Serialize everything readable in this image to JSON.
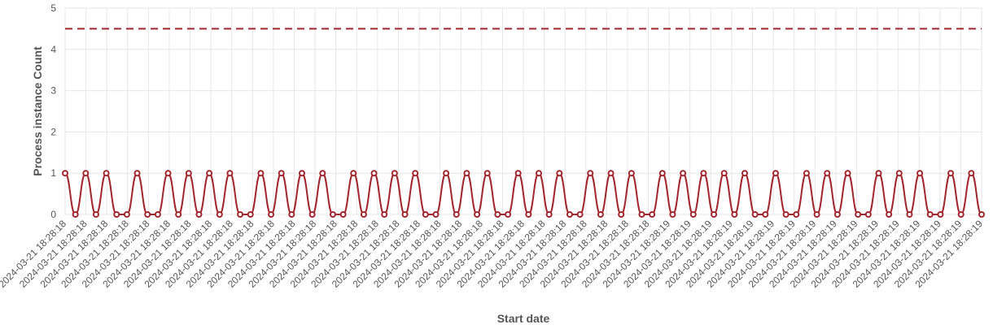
{
  "chart_data": {
    "type": "line",
    "xlabel": "Start date",
    "ylabel": "Process instance Count",
    "ylim": [
      0,
      5
    ],
    "yticks": [
      "0",
      "1",
      "2",
      "3",
      "4",
      "5"
    ],
    "grid": true,
    "x_tick_labels": [
      "2024-03-21 18:28:18",
      "2024-03-21 18:28:18",
      "2024-03-21 18:28:18",
      "2024-03-21 18:28:18",
      "2024-03-21 18:28:18",
      "2024-03-21 18:28:18",
      "2024-03-21 18:28:18",
      "2024-03-21 18:28:18",
      "2024-03-21 18:28:18",
      "2024-03-21 18:28:18",
      "2024-03-21 18:28:18",
      "2024-03-21 18:28:18",
      "2024-03-21 18:28:18",
      "2024-03-21 18:28:18",
      "2024-03-21 18:28:18",
      "2024-03-21 18:28:18",
      "2024-03-21 18:28:18",
      "2024-03-21 18:28:18",
      "2024-03-21 18:28:18",
      "2024-03-21 18:28:18",
      "2024-03-21 18:28:18",
      "2024-03-21 18:28:18",
      "2024-03-21 18:28:18",
      "2024-03-21 18:28:18",
      "2024-03-21 18:28:18",
      "2024-03-21 18:28:18",
      "2024-03-21 18:28:18",
      "2024-03-21 18:28:18",
      "2024-03-21 18:28:18",
      "2024-03-21 18:28:19",
      "2024-03-21 18:28:19",
      "2024-03-21 18:28:19",
      "2024-03-21 18:28:19",
      "2024-03-21 18:28:19",
      "2024-03-21 18:28:19",
      "2024-03-21 18:28:19",
      "2024-03-21 18:28:19",
      "2024-03-21 18:28:19",
      "2024-03-21 18:28:19",
      "2024-03-21 18:28:19",
      "2024-03-21 18:28:19",
      "2024-03-21 18:28:19",
      "2024-03-21 18:28:19",
      "2024-03-21 18:28:19",
      "2024-03-21 18:28:19"
    ],
    "series": [
      {
        "values": [
          1,
          0,
          1,
          0,
          1,
          0,
          0,
          1,
          0,
          0,
          1,
          0,
          1,
          0,
          1,
          0,
          1,
          0,
          0,
          1,
          0,
          1,
          0,
          1,
          0,
          1,
          0,
          0,
          1,
          0,
          1,
          0,
          1,
          0,
          1,
          0,
          0,
          1,
          0,
          1,
          0,
          1,
          0,
          0,
          1,
          0,
          1,
          0,
          1,
          0,
          0,
          1,
          0,
          1,
          0,
          1,
          0,
          0,
          1,
          0,
          1,
          0,
          1,
          0,
          1,
          0,
          1,
          0,
          0,
          1,
          0,
          0,
          1,
          0,
          1,
          0,
          1,
          0,
          0,
          1,
          0,
          1,
          0,
          1,
          0,
          0,
          1,
          0,
          1,
          0
        ],
        "color": "#a1262e"
      }
    ],
    "reference_lines": [
      {
        "y": 4.5,
        "color": "#a1262e",
        "style": "dashed"
      }
    ]
  }
}
